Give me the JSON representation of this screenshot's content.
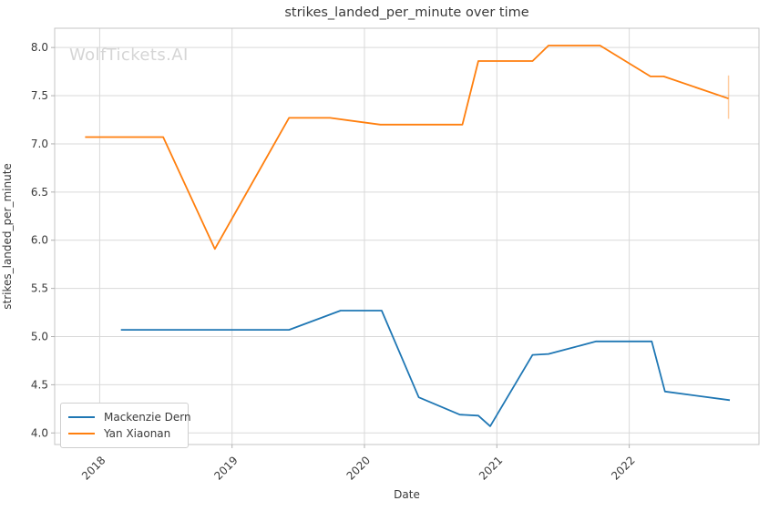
{
  "watermark": "WolfTickets.AI",
  "chart_data": {
    "type": "line",
    "title": "strikes_landed_per_minute over time",
    "xlabel": "Date",
    "ylabel": "strikes_landed_per_minute",
    "x_ticks": [
      2018,
      2019,
      2020,
      2021,
      2022
    ],
    "y_ticks": [
      4.0,
      4.5,
      5.0,
      5.5,
      6.0,
      6.5,
      7.0,
      7.5,
      8.0
    ],
    "xlim": [
      2017.66,
      2022.98
    ],
    "ylim": [
      3.88,
      8.2
    ],
    "grid": true,
    "legend_position": "lower left",
    "colors": {
      "grid": "#d9d9d9",
      "spine": "#c4c4c4",
      "tick_mark": "#b0b0b0",
      "text": "#3a3a3a",
      "watermark": "#d5d5d5",
      "error_bar": "rgba(255,127,14,0.4)"
    },
    "series": [
      {
        "name": "Mackenzie Dern",
        "color": "#1f77b4",
        "x": [
          2018.16,
          2019.43,
          2019.82,
          2020.13,
          2020.41,
          2020.72,
          2020.86,
          2020.95,
          2021.27,
          2021.39,
          2021.75,
          2022.17,
          2022.27,
          2022.76
        ],
        "y": [
          5.07,
          5.07,
          5.27,
          5.27,
          4.37,
          4.19,
          4.18,
          4.07,
          4.81,
          4.82,
          4.95,
          4.95,
          4.43,
          4.34
        ]
      },
      {
        "name": "Yan Xiaonan",
        "color": "#ff7f0e",
        "x": [
          2017.89,
          2018.48,
          2018.87,
          2019.43,
          2019.74,
          2020.12,
          2020.74,
          2020.86,
          2021.27,
          2021.39,
          2021.78,
          2022.16,
          2022.26,
          2022.75
        ],
        "y": [
          7.07,
          7.07,
          5.91,
          7.27,
          7.27,
          7.2,
          7.2,
          7.86,
          7.86,
          8.02,
          8.02,
          7.7,
          7.7,
          7.47
        ],
        "error_bar": {
          "x": 2022.75,
          "y_low": 7.26,
          "y_high": 7.71
        }
      }
    ]
  }
}
